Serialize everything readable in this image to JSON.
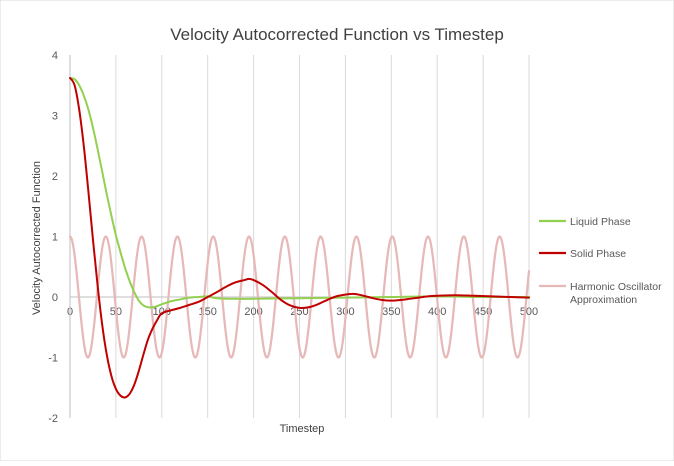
{
  "chart_data": {
    "type": "line",
    "title": "Velocity Autocorrected Function vs Timestep",
    "xlabel": "Timestep",
    "ylabel": "Velocity Autocorrected Function",
    "xlim": [
      0,
      500
    ],
    "ylim": [
      -2,
      4
    ],
    "x_ticks": [
      "0",
      "50",
      "100",
      "150",
      "200",
      "250",
      "300",
      "350",
      "400",
      "450",
      "500"
    ],
    "y_ticks": [
      "4",
      "3",
      "2",
      "1",
      "0",
      "-1",
      "-2"
    ],
    "grid": "vertical",
    "legend_position": "right",
    "series": [
      {
        "name": "Liquid Phase",
        "color": "#92d050",
        "points": [
          [
            0,
            3.62
          ],
          [
            5,
            3.6
          ],
          [
            10,
            3.5
          ],
          [
            15,
            3.33
          ],
          [
            20,
            3.1
          ],
          [
            25,
            2.8
          ],
          [
            30,
            2.45
          ],
          [
            35,
            2.08
          ],
          [
            40,
            1.7
          ],
          [
            45,
            1.35
          ],
          [
            50,
            1.02
          ],
          [
            55,
            0.74
          ],
          [
            60,
            0.48
          ],
          [
            65,
            0.26
          ],
          [
            70,
            0.08
          ],
          [
            75,
            -0.06
          ],
          [
            80,
            -0.14
          ],
          [
            85,
            -0.17
          ],
          [
            90,
            -0.17
          ],
          [
            95,
            -0.15
          ],
          [
            100,
            -0.12
          ],
          [
            110,
            -0.07
          ],
          [
            120,
            -0.04
          ],
          [
            130,
            -0.01
          ],
          [
            140,
            0.0
          ],
          [
            150,
            0.01
          ],
          [
            160,
            -0.02
          ],
          [
            180,
            -0.03
          ],
          [
            200,
            -0.03
          ],
          [
            250,
            -0.02
          ],
          [
            300,
            -0.01
          ],
          [
            350,
            0.0
          ],
          [
            400,
            0.01
          ],
          [
            450,
            0.0
          ],
          [
            500,
            0.0
          ]
        ]
      },
      {
        "name": "Solid Phase",
        "color": "#c00000",
        "points": [
          [
            0,
            3.62
          ],
          [
            5,
            3.5
          ],
          [
            10,
            3.1
          ],
          [
            15,
            2.5
          ],
          [
            20,
            1.75
          ],
          [
            25,
            0.95
          ],
          [
            30,
            0.2
          ],
          [
            35,
            -0.45
          ],
          [
            40,
            -0.95
          ],
          [
            45,
            -1.3
          ],
          [
            50,
            -1.52
          ],
          [
            55,
            -1.63
          ],
          [
            60,
            -1.66
          ],
          [
            65,
            -1.6
          ],
          [
            70,
            -1.45
          ],
          [
            75,
            -1.22
          ],
          [
            80,
            -0.95
          ],
          [
            85,
            -0.7
          ],
          [
            90,
            -0.52
          ],
          [
            95,
            -0.38
          ],
          [
            100,
            -0.27
          ],
          [
            110,
            -0.22
          ],
          [
            120,
            -0.18
          ],
          [
            130,
            -0.13
          ],
          [
            140,
            -0.08
          ],
          [
            150,
            0.0
          ],
          [
            160,
            0.08
          ],
          [
            170,
            0.17
          ],
          [
            180,
            0.24
          ],
          [
            190,
            0.28
          ],
          [
            195,
            0.3
          ],
          [
            200,
            0.28
          ],
          [
            210,
            0.2
          ],
          [
            220,
            0.08
          ],
          [
            230,
            -0.05
          ],
          [
            240,
            -0.14
          ],
          [
            250,
            -0.18
          ],
          [
            260,
            -0.17
          ],
          [
            270,
            -0.12
          ],
          [
            280,
            -0.05
          ],
          [
            290,
            0.01
          ],
          [
            300,
            0.04
          ],
          [
            310,
            0.05
          ],
          [
            320,
            0.02
          ],
          [
            330,
            -0.02
          ],
          [
            340,
            -0.05
          ],
          [
            350,
            -0.06
          ],
          [
            360,
            -0.05
          ],
          [
            370,
            -0.03
          ],
          [
            380,
            -0.01
          ],
          [
            390,
            0.01
          ],
          [
            400,
            0.02
          ],
          [
            420,
            0.03
          ],
          [
            440,
            0.02
          ],
          [
            460,
            0.01
          ],
          [
            480,
            0.0
          ],
          [
            500,
            -0.01
          ]
        ]
      },
      {
        "name": "Harmonic Oscillator Approximation",
        "color": "#e6b9b8",
        "amplitude": 1,
        "period": 39,
        "phase": 0
      }
    ]
  }
}
